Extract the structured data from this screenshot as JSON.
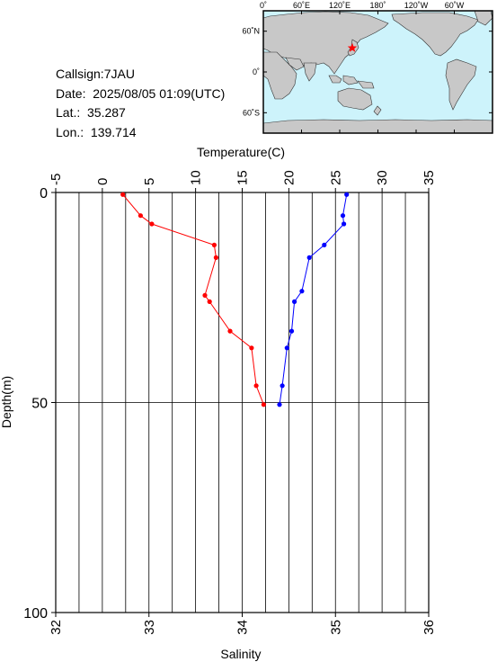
{
  "info": {
    "callsign": "Callsign:7JAU",
    "date": "Date:  2025/08/05 01:09(UTC)",
    "lat": "Lat.:  35.287",
    "lon": "Lon.:  139.714"
  },
  "map": {
    "top_labels": [
      "0˚",
      "60˚E",
      "120˚E",
      "180˚",
      "120˚W",
      "60˚W"
    ],
    "left_labels": [
      "60˚N",
      "0˚",
      "60˚S"
    ],
    "station": {
      "lat": 35.287,
      "lon": 139.714
    },
    "colors": {
      "ocean": "#cdf3fb",
      "land": "#c8c8c8",
      "marker": "#ff0000"
    }
  },
  "chart_data": {
    "type": "line",
    "xlabel_top": "Temperature(C)",
    "xlabel_bottom": "Salinity",
    "ylabel": "Depth(m)",
    "temperature_ticks": [
      "-5",
      "0",
      "5",
      "10",
      "15",
      "20",
      "25",
      "30",
      "35"
    ],
    "salinity_ticks": [
      "32",
      "33",
      "34",
      "35",
      "36"
    ],
    "depth_ticks": [
      "0",
      "50",
      "100"
    ],
    "temperature_range": [
      -5,
      35
    ],
    "salinity_range": [
      32,
      36
    ],
    "depth_range": [
      0,
      100
    ],
    "grid": true,
    "series": [
      {
        "color": "#ff0000",
        "axis": "temperature",
        "points": [
          {
            "depth": 0.5,
            "value": 2.2
          },
          {
            "depth": 5.5,
            "value": 4.1
          },
          {
            "depth": 7.5,
            "value": 5.3
          },
          {
            "depth": 12.5,
            "value": 12.0
          },
          {
            "depth": 15.5,
            "value": 12.2
          },
          {
            "depth": 24.5,
            "value": 11.0
          },
          {
            "depth": 26.0,
            "value": 11.5
          },
          {
            "depth": 33.0,
            "value": 13.7
          },
          {
            "depth": 37.0,
            "value": 16.0
          },
          {
            "depth": 46.0,
            "value": 16.5
          },
          {
            "depth": 50.5,
            "value": 17.3
          }
        ]
      },
      {
        "color": "#0000ff",
        "axis": "salinity",
        "points": [
          {
            "depth": 0.5,
            "value": 35.12
          },
          {
            "depth": 5.5,
            "value": 35.08
          },
          {
            "depth": 7.5,
            "value": 35.09
          },
          {
            "depth": 12.5,
            "value": 34.88
          },
          {
            "depth": 15.5,
            "value": 34.72
          },
          {
            "depth": 23.5,
            "value": 34.64
          },
          {
            "depth": 26.0,
            "value": 34.56
          },
          {
            "depth": 33.0,
            "value": 34.53
          },
          {
            "depth": 37.0,
            "value": 34.48
          },
          {
            "depth": 46.0,
            "value": 34.43
          },
          {
            "depth": 50.5,
            "value": 34.4
          }
        ]
      }
    ]
  }
}
